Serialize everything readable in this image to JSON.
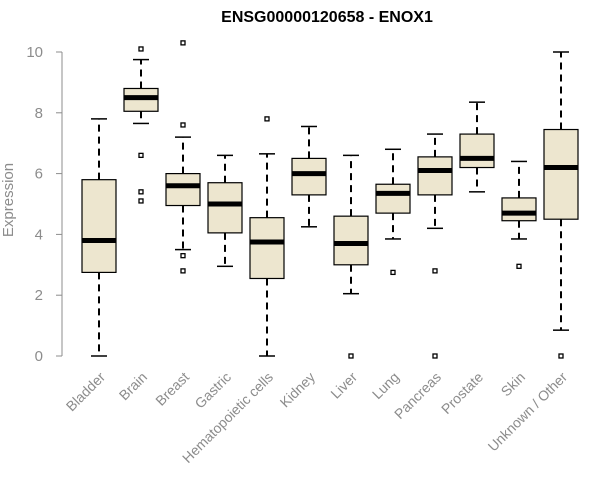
{
  "chart_data": {
    "type": "boxplot",
    "title": "ENSG00000120658 - ENOX1",
    "ylabel": "Expression",
    "xlabel": "",
    "ylim": [
      0,
      10.2
    ],
    "yticks": [
      0,
      2,
      4,
      6,
      8,
      10
    ],
    "box_color": "#ede6cf",
    "categories": [
      "Bladder",
      "Brain",
      "Breast",
      "Gastric",
      "Hematopoietic cells",
      "Kidney",
      "Liver",
      "Lung",
      "Pancreas",
      "Prostate",
      "Skin",
      "Unknown / Other"
    ],
    "series": [
      {
        "name": "Bladder",
        "min": 0.0,
        "q1": 2.75,
        "median": 3.8,
        "q3": 5.8,
        "max": 7.8,
        "outliers": []
      },
      {
        "name": "Brain",
        "min": 7.65,
        "q1": 8.05,
        "median": 8.5,
        "q3": 8.8,
        "max": 9.75,
        "outliers": [
          10.1,
          6.6,
          5.4,
          5.1
        ]
      },
      {
        "name": "Breast",
        "min": 3.5,
        "q1": 4.95,
        "median": 5.6,
        "q3": 6.0,
        "max": 7.2,
        "outliers": [
          10.3,
          7.6,
          3.3,
          2.8
        ]
      },
      {
        "name": "Gastric",
        "min": 2.95,
        "q1": 4.05,
        "median": 5.0,
        "q3": 5.7,
        "max": 6.6,
        "outliers": []
      },
      {
        "name": "Hematopoietic cells",
        "min": 0.0,
        "q1": 2.55,
        "median": 3.75,
        "q3": 4.55,
        "max": 6.65,
        "outliers": [
          7.8
        ]
      },
      {
        "name": "Kidney",
        "min": 4.25,
        "q1": 5.3,
        "median": 6.0,
        "q3": 6.5,
        "max": 7.55,
        "outliers": []
      },
      {
        "name": "Liver",
        "min": 2.05,
        "q1": 3.0,
        "median": 3.7,
        "q3": 4.6,
        "max": 6.6,
        "outliers": [
          0.0
        ]
      },
      {
        "name": "Lung",
        "min": 3.85,
        "q1": 4.7,
        "median": 5.35,
        "q3": 5.65,
        "max": 6.8,
        "outliers": [
          2.75
        ]
      },
      {
        "name": "Pancreas",
        "min": 4.2,
        "q1": 5.3,
        "median": 6.1,
        "q3": 6.55,
        "max": 7.3,
        "outliers": [
          2.8,
          0.0
        ]
      },
      {
        "name": "Prostate",
        "min": 5.4,
        "q1": 6.2,
        "median": 6.5,
        "q3": 7.3,
        "max": 8.35,
        "outliers": []
      },
      {
        "name": "Skin",
        "min": 3.85,
        "q1": 4.45,
        "median": 4.7,
        "q3": 5.2,
        "max": 6.4,
        "outliers": [
          2.95
        ]
      },
      {
        "name": "Unknown / Other",
        "min": 0.85,
        "q1": 4.5,
        "median": 6.2,
        "q3": 7.45,
        "max": 10.0,
        "outliers": [
          0.0
        ]
      }
    ]
  }
}
